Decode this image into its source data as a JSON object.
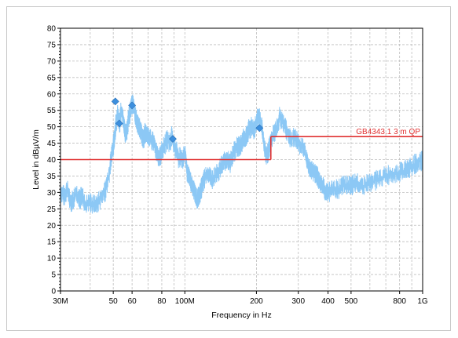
{
  "chart_data": {
    "type": "line",
    "title": "",
    "xlabel": "Frequency in Hz",
    "ylabel": "Level in dBµV/m",
    "xscale": "log",
    "xlim": [
      30000000,
      1000000000
    ],
    "ylim": [
      0,
      80
    ],
    "grid": true,
    "x_ticks": [
      {
        "value": 30000000,
        "label": "30M"
      },
      {
        "value": 50000000,
        "label": "50"
      },
      {
        "value": 60000000,
        "label": "60"
      },
      {
        "value": 80000000,
        "label": "80"
      },
      {
        "value": 100000000,
        "label": "100M"
      },
      {
        "value": 200000000,
        "label": "200"
      },
      {
        "value": 300000000,
        "label": "300"
      },
      {
        "value": 400000000,
        "label": "400"
      },
      {
        "value": 500000000,
        "label": "500"
      },
      {
        "value": 800000000,
        "label": "800"
      },
      {
        "value": 1000000000,
        "label": "1G"
      }
    ],
    "y_ticks": [
      0,
      5,
      10,
      15,
      20,
      25,
      30,
      35,
      40,
      45,
      50,
      55,
      60,
      65,
      70,
      75,
      80
    ],
    "limit_line": {
      "label": "GB4343.1 3 m QP",
      "color": "#e03030",
      "segments": [
        {
          "x": [
            30000000,
            230000000
          ],
          "y": 40
        },
        {
          "x": [
            230000000,
            1000000000
          ],
          "y": 47
        }
      ]
    },
    "spectrum": {
      "color": "#8cc8f5",
      "points": [
        [
          30,
          30
        ],
        [
          31,
          29
        ],
        [
          32,
          31
        ],
        [
          33,
          27
        ],
        [
          34,
          28
        ],
        [
          35,
          30
        ],
        [
          36,
          28
        ],
        [
          37,
          29
        ],
        [
          38,
          26
        ],
        [
          40,
          27
        ],
        [
          42,
          26
        ],
        [
          44,
          28
        ],
        [
          46,
          30
        ],
        [
          48,
          36
        ],
        [
          49,
          41
        ],
        [
          50,
          44
        ],
        [
          51,
          50
        ],
        [
          52,
          54
        ],
        [
          53,
          51
        ],
        [
          54,
          55
        ],
        [
          55,
          52
        ],
        [
          56,
          48
        ],
        [
          57,
          49
        ],
        [
          58,
          53
        ],
        [
          59,
          55
        ],
        [
          60,
          57
        ],
        [
          61,
          56
        ],
        [
          62,
          53
        ],
        [
          63,
          51
        ],
        [
          64,
          50
        ],
        [
          65,
          49
        ],
        [
          66,
          47
        ],
        [
          67,
          46
        ],
        [
          68,
          48
        ],
        [
          70,
          47
        ],
        [
          72,
          46
        ],
        [
          74,
          45
        ],
        [
          76,
          42
        ],
        [
          78,
          40
        ],
        [
          80,
          43
        ],
        [
          82,
          44
        ],
        [
          84,
          46
        ],
        [
          86,
          45
        ],
        [
          88,
          47
        ],
        [
          90,
          44
        ],
        [
          92,
          43
        ],
        [
          94,
          40
        ],
        [
          96,
          41
        ],
        [
          98,
          40
        ],
        [
          100,
          42
        ],
        [
          102,
          36
        ],
        [
          104,
          35
        ],
        [
          106,
          33
        ],
        [
          108,
          31
        ],
        [
          110,
          30
        ],
        [
          112,
          28
        ],
        [
          114,
          29
        ],
        [
          116,
          30
        ],
        [
          118,
          32
        ],
        [
          120,
          34
        ],
        [
          125,
          36
        ],
        [
          130,
          34
        ],
        [
          135,
          35
        ],
        [
          140,
          37
        ],
        [
          145,
          39
        ],
        [
          150,
          40
        ],
        [
          155,
          39
        ],
        [
          160,
          42
        ],
        [
          165,
          44
        ],
        [
          170,
          44
        ],
        [
          175,
          46
        ],
        [
          180,
          47
        ],
        [
          185,
          49
        ],
        [
          190,
          50
        ],
        [
          195,
          49
        ],
        [
          200,
          52
        ],
        [
          205,
          53
        ],
        [
          210,
          51
        ],
        [
          215,
          44
        ],
        [
          220,
          41
        ],
        [
          225,
          43
        ],
        [
          230,
          46
        ],
        [
          240,
          49
        ],
        [
          250,
          53
        ],
        [
          260,
          51
        ],
        [
          270,
          48
        ],
        [
          280,
          46
        ],
        [
          290,
          47
        ],
        [
          300,
          45
        ],
        [
          310,
          44
        ],
        [
          320,
          42
        ],
        [
          330,
          38
        ],
        [
          340,
          37
        ],
        [
          350,
          36
        ],
        [
          360,
          35
        ],
        [
          370,
          33
        ],
        [
          380,
          32
        ],
        [
          390,
          30
        ],
        [
          400,
          30
        ],
        [
          420,
          31
        ],
        [
          440,
          31
        ],
        [
          460,
          32
        ],
        [
          480,
          32
        ],
        [
          500,
          32
        ],
        [
          530,
          33
        ],
        [
          560,
          32
        ],
        [
          600,
          33
        ],
        [
          650,
          34
        ],
        [
          700,
          35
        ],
        [
          750,
          36
        ],
        [
          800,
          36
        ],
        [
          850,
          37
        ],
        [
          900,
          38
        ],
        [
          950,
          39
        ],
        [
          1000,
          40
        ]
      ]
    },
    "markers": {
      "color": "#3c8fde",
      "points": [
        {
          "x": 51000000,
          "y": 57.7
        },
        {
          "x": 53000000,
          "y": 51.0
        },
        {
          "x": 60000000,
          "y": 56.5
        },
        {
          "x": 89000000,
          "y": 46.3
        },
        {
          "x": 206000000,
          "y": 49.6
        }
      ]
    }
  }
}
